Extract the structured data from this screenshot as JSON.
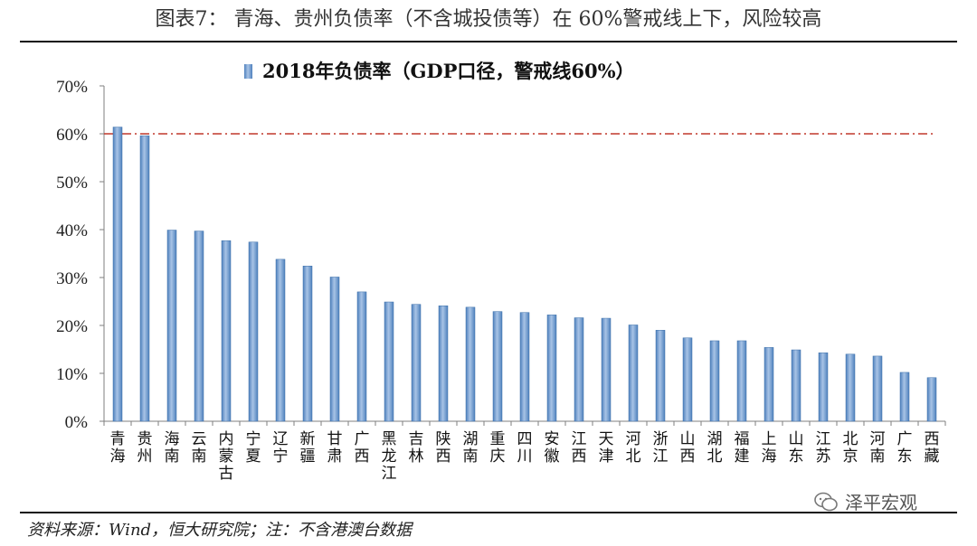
{
  "header": {
    "title": "图表7：  青海、贵州负债率（不含城投债等）在 60%警戒线上下，风险较高"
  },
  "footer": {
    "source": "资料来源：Wind，恒大研究院；注：不含港澳台数据"
  },
  "watermark": {
    "text": "泽平宏观",
    "icon": "wechat-icon"
  },
  "colors": {
    "bar": "#4f81bd",
    "bar_light": "#a9c4e6",
    "threshold": "#c0392b",
    "axis": "#7f7f7f"
  },
  "chart_data": {
    "type": "bar",
    "legend": {
      "label": "2018年负债率（GDP口径，警戒线60%）",
      "position": "top-center"
    },
    "categories": [
      "青海",
      "贵州",
      "海南",
      "云南",
      "内蒙古",
      "宁夏",
      "辽宁",
      "新疆",
      "甘肃",
      "广西",
      "黑龙江",
      "吉林",
      "陕西",
      "湖南",
      "重庆",
      "四川",
      "安徽",
      "江西",
      "天津",
      "河北",
      "浙江",
      "山西",
      "湖北",
      "福建",
      "上海",
      "山东",
      "江苏",
      "北京",
      "河南",
      "广东",
      "西藏"
    ],
    "series": [
      {
        "name": "2018年负债率（GDP口径，警戒线60%）",
        "values": [
          61.4,
          59.6,
          39.9,
          39.7,
          37.7,
          37.4,
          33.8,
          32.4,
          30.1,
          27.0,
          24.9,
          24.4,
          24.1,
          23.8,
          22.9,
          22.7,
          22.2,
          21.6,
          21.5,
          20.1,
          19.0,
          17.4,
          16.8,
          16.8,
          15.4,
          14.9,
          14.3,
          14.0,
          13.6,
          10.2,
          9.1
        ]
      }
    ],
    "threshold": 60,
    "ylim": [
      0,
      70
    ],
    "yticks": [
      "0%",
      "10%",
      "20%",
      "30%",
      "40%",
      "50%",
      "60%",
      "70%"
    ],
    "ytick_values": [
      0,
      10,
      20,
      30,
      40,
      50,
      60,
      70
    ],
    "grid": false
  }
}
